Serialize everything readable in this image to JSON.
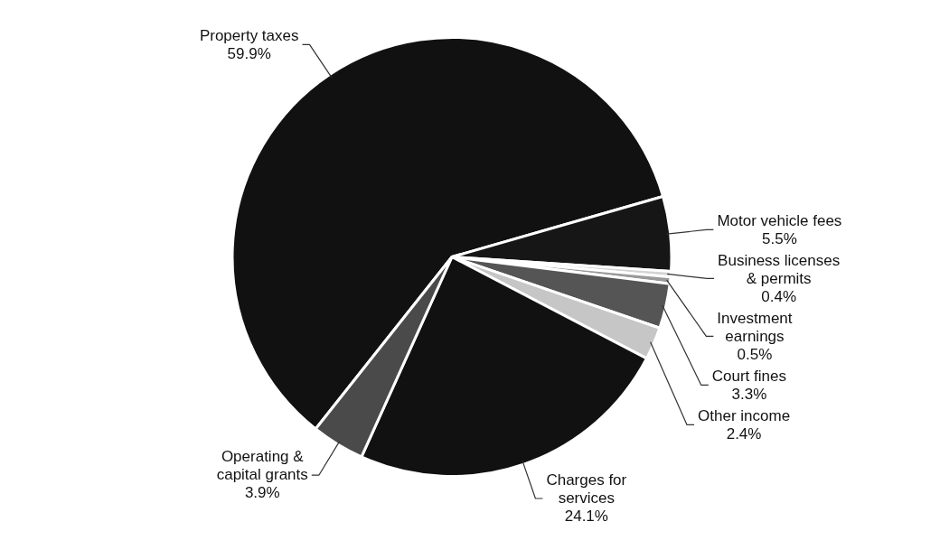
{
  "chart_data": {
    "type": "pie",
    "categories": [
      "Property taxes",
      "Motor vehicle fees",
      "Business licenses & permits",
      "Investment earnings",
      "Court fines",
      "Other income",
      "Charges for services",
      "Operating & capital grants"
    ],
    "values": [
      59.9,
      5.5,
      0.4,
      0.5,
      3.3,
      2.4,
      24.1,
      3.9
    ],
    "value_labels": [
      "59.9%",
      "5.5%",
      "0.4%",
      "0.5%",
      "3.3%",
      "2.4%",
      "24.1%",
      "3.9%"
    ],
    "colors": [
      "#111111",
      "#161616",
      "#d4d4d4",
      "#9a9a9a",
      "#555555",
      "#c6c6c6",
      "#111111",
      "#4a4a4a"
    ],
    "legend": false
  }
}
